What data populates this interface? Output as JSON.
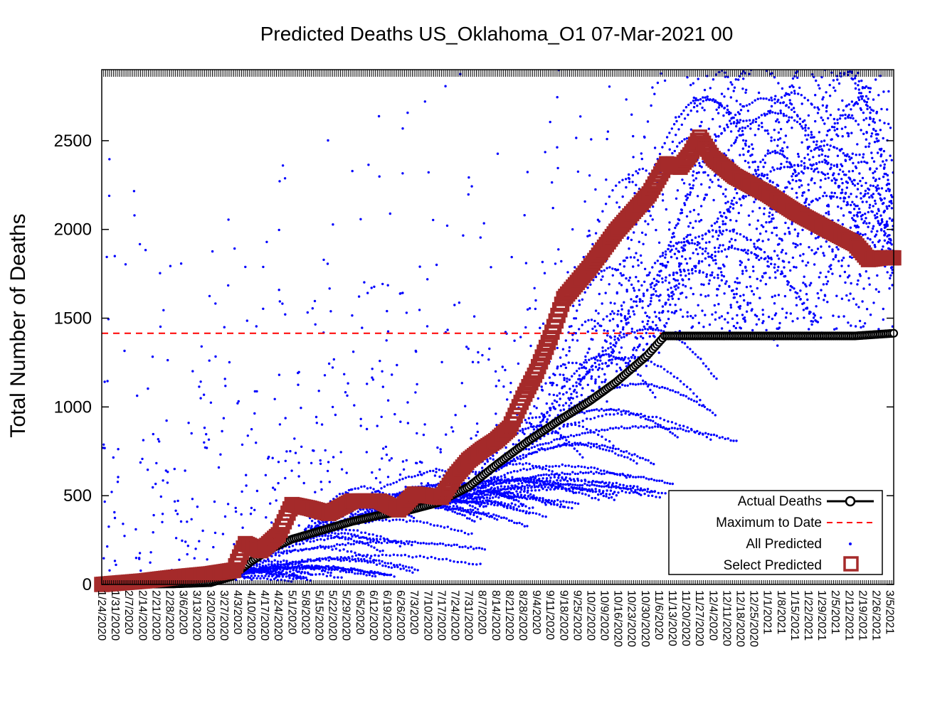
{
  "chart_data": {
    "type": "scatter",
    "title": "Predicted Deaths US_Oklahoma_O1 07-Mar-2021 00",
    "xlabel": "",
    "ylabel": "Total Number of Deaths",
    "ylim": [
      0,
      2900
    ],
    "yticks": [
      0,
      500,
      1000,
      1500,
      2000,
      2500
    ],
    "x_start": "1/24/2020",
    "x_end": "3/7/2021",
    "xticks": [
      "1/24/2020",
      "1/31/2020",
      "2/7/2020",
      "2/14/2020",
      "2/21/2020",
      "2/28/2020",
      "3/6/2020",
      "3/13/2020",
      "3/20/2020",
      "3/27/2020",
      "4/3/2020",
      "4/10/2020",
      "4/17/2020",
      "4/24/2020",
      "5/1/2020",
      "5/8/2020",
      "5/15/2020",
      "5/22/2020",
      "5/29/2020",
      "6/5/2020",
      "6/12/2020",
      "6/19/2020",
      "6/26/2020",
      "7/3/2020",
      "7/10/2020",
      "7/17/2020",
      "7/24/2020",
      "7/31/2020",
      "8/7/2020",
      "8/14/2020",
      "8/21/2020",
      "8/28/2020",
      "9/4/2020",
      "9/11/2020",
      "9/18/2020",
      "9/25/2020",
      "10/2/2020",
      "10/9/2020",
      "10/16/2020",
      "10/23/2020",
      "10/30/2020",
      "11/6/2020",
      "11/13/2020",
      "11/20/2020",
      "11/27/2020",
      "12/4/2020",
      "12/11/2020",
      "12/18/2020",
      "12/25/2020",
      "1/1/2021",
      "1/8/2021",
      "1/15/2021",
      "1/22/2021",
      "1/29/2021",
      "2/5/2021",
      "2/12/2021",
      "2/19/2021",
      "2/26/2021",
      "3/5/2021"
    ],
    "legend_position": "bottom-right",
    "legend": [
      "Actual Deaths",
      "Maximum to Date",
      "All Predicted",
      "Select Predicted"
    ],
    "max_to_date": 1415,
    "colors": {
      "actual": "#000000",
      "max": "#ff0000",
      "predicted": "#0000ff",
      "select": "#a52a2a"
    },
    "series": [
      {
        "name": "Actual Deaths",
        "style": "line-circle",
        "x": [
          "1/24/2020",
          "3/1/2020",
          "3/20/2020",
          "3/31/2020",
          "4/10/2020",
          "4/20/2020",
          "5/1/2020",
          "5/15/2020",
          "6/1/2020",
          "6/15/2020",
          "7/1/2020",
          "7/15/2020",
          "7/31/2020",
          "8/15/2020",
          "8/31/2020",
          "9/15/2020",
          "10/1/2020",
          "10/15/2020",
          "10/31/2020",
          "11/9/2020",
          "11/20/2020",
          "12/1/2020",
          "12/15/2020",
          "1/1/2021",
          "1/15/2021",
          "2/1/2021",
          "2/15/2021",
          "3/7/2021"
        ],
        "y": [
          0,
          3,
          10,
          45,
          130,
          200,
          255,
          300,
          355,
          390,
          420,
          460,
          550,
          680,
          810,
          920,
          1030,
          1140,
          1290,
          1400,
          1400,
          1400,
          1400,
          1400,
          1400,
          1400,
          1400,
          1415
        ]
      },
      {
        "name": "Select Predicted",
        "style": "square",
        "x": [
          "1/24/2020",
          "2/15/2020",
          "3/1/2020",
          "3/20/2020",
          "4/1/2020",
          "4/7/2020",
          "4/15/2020",
          "4/24/2020",
          "5/1/2020",
          "5/10/2020",
          "5/20/2020",
          "6/1/2020",
          "6/15/2020",
          "6/25/2020",
          "7/3/2020",
          "7/10/2020",
          "7/17/2020",
          "7/24/2020",
          "7/31/2020",
          "8/7/2020",
          "8/14/2020",
          "8/21/2020",
          "8/28/2020",
          "9/4/2020",
          "9/11/2020",
          "9/18/2020",
          "10/1/2020",
          "10/15/2020",
          "11/1/2020",
          "11/10/2020",
          "11/17/2020",
          "11/22/2020",
          "11/27/2020",
          "12/4/2020",
          "12/15/2020",
          "1/1/2021",
          "1/15/2021",
          "2/1/2021",
          "2/15/2021",
          "2/22/2021",
          "3/1/2021",
          "3/7/2021"
        ],
        "y": [
          0,
          20,
          40,
          60,
          80,
          230,
          190,
          280,
          450,
          430,
          400,
          470,
          470,
          420,
          510,
          500,
          490,
          610,
          700,
          760,
          810,
          880,
          1050,
          1200,
          1390,
          1610,
          1780,
          1990,
          2200,
          2370,
          2350,
          2420,
          2520,
          2400,
          2300,
          2200,
          2100,
          2000,
          1920,
          1830,
          1840,
          1840
        ]
      }
    ]
  }
}
